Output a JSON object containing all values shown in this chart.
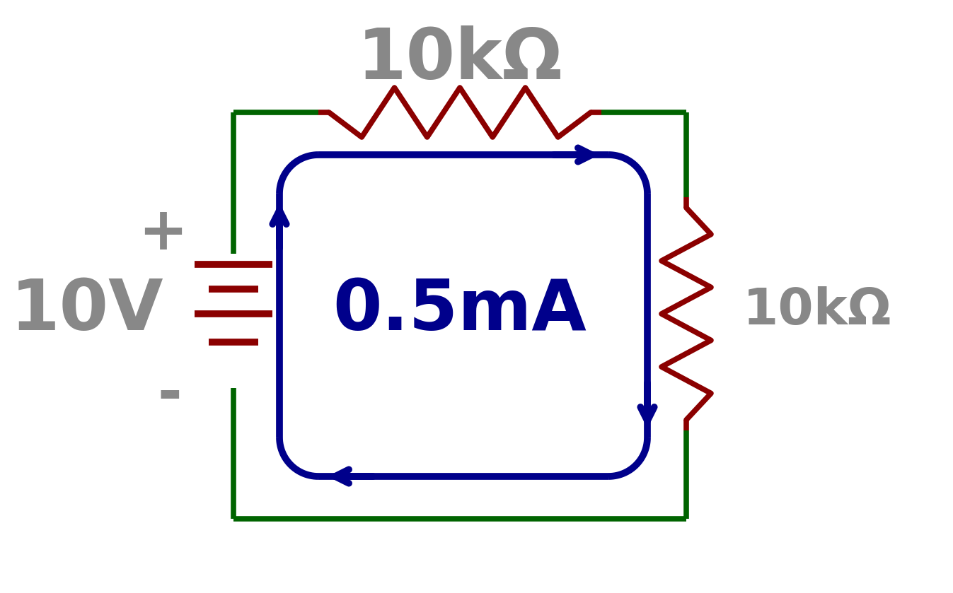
{
  "bg_color": "#ffffff",
  "dark_red": "#8B0000",
  "green": "#006400",
  "blue": "#00008B",
  "gray": "#888888",
  "title_top": "10kΩ",
  "label_right": "10kΩ",
  "label_left": "10V",
  "label_current": "0.5mA",
  "plus_sign": "+",
  "minus_sign": "-",
  "figsize": [
    13.47,
    8.39
  ],
  "dpi": 100
}
